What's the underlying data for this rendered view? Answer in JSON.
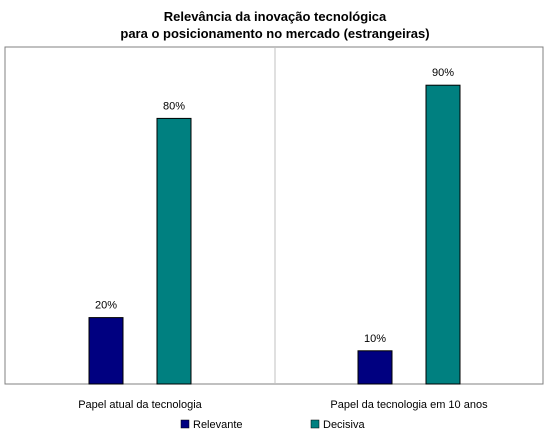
{
  "chart_data": {
    "type": "bar",
    "title_lines": [
      "Relevância da inovação tecnológica",
      "para o posicionamento no mercado (estrangeiras)"
    ],
    "categories": [
      "Papel atual da tecnologia",
      "Papel da tecnologia em 10 anos"
    ],
    "series": [
      {
        "name": "Relevante",
        "values": [
          20,
          10
        ],
        "labels": [
          "20%",
          "10%"
        ],
        "color": "#000080"
      },
      {
        "name": "Decisiva",
        "values": [
          80,
          90
        ],
        "labels": [
          "80%",
          "90%"
        ],
        "color": "#008080"
      }
    ],
    "ylim": [
      0,
      100
    ],
    "grid": false,
    "legend_position": "bottom",
    "frame_color": "#808080"
  }
}
